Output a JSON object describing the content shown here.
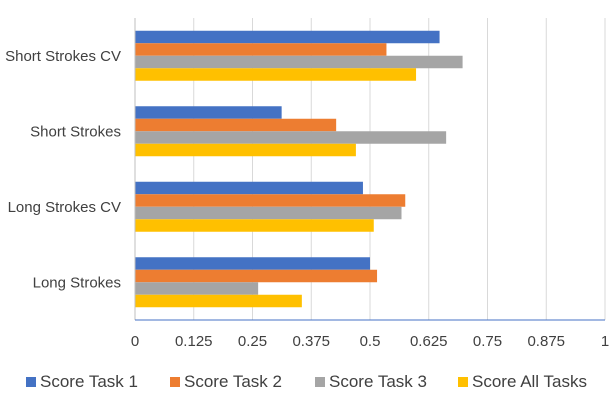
{
  "chart_data": {
    "type": "bar",
    "orientation": "horizontal",
    "title": "",
    "xlabel": "",
    "ylabel": "",
    "categories": [
      "Long Strokes",
      "Long Strokes CV",
      "Short Strokes",
      "Short Strokes CV"
    ],
    "series": [
      {
        "name": "Score Task 1",
        "color": "#4472C4",
        "values": [
          0.5,
          0.485,
          0.312,
          0.648
        ]
      },
      {
        "name": "Score Task 2",
        "color": "#ED7D31",
        "values": [
          0.515,
          0.575,
          0.428,
          0.535
        ]
      },
      {
        "name": "Score Task 3",
        "color": "#A5A5A5",
        "values": [
          0.262,
          0.567,
          0.662,
          0.697
        ]
      },
      {
        "name": "Score All Tasks",
        "color": "#FFC000",
        "values": [
          0.355,
          0.508,
          0.47,
          0.598
        ]
      }
    ],
    "xlim": [
      0,
      1
    ],
    "xticks": [
      "0",
      "0.125",
      "0.25",
      "0.375",
      "0.5",
      "0.625",
      "0.75",
      "0.875",
      "1"
    ],
    "grid": true,
    "legend_position": "bottom"
  }
}
